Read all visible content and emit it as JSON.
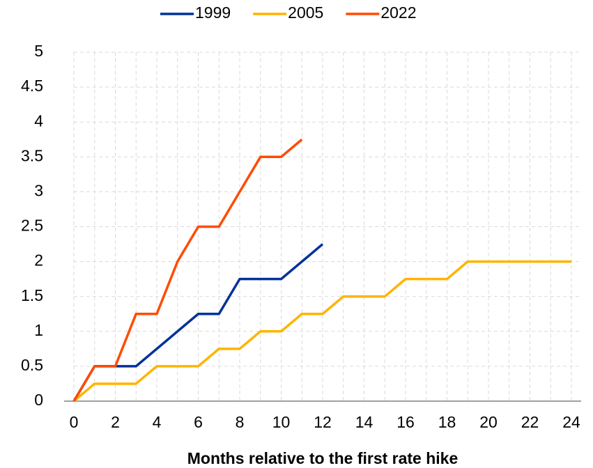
{
  "chart_data": {
    "type": "line",
    "x": [
      0,
      1,
      2,
      3,
      4,
      5,
      6,
      7,
      8,
      9,
      10,
      11,
      12,
      13,
      14,
      15,
      16,
      17,
      18,
      19,
      20,
      21,
      22,
      23,
      24
    ],
    "series": [
      {
        "name": "1999",
        "color": "#003299",
        "values": [
          0,
          0.5,
          0.5,
          0.5,
          0.75,
          1,
          1.25,
          1.25,
          1.75,
          1.75,
          1.75,
          2,
          2.25,
          null,
          null,
          null,
          null,
          null,
          null,
          null,
          null,
          null,
          null,
          null,
          null
        ]
      },
      {
        "name": "2005",
        "color": "#ffb400",
        "values": [
          0,
          0.25,
          0.25,
          0.25,
          0.5,
          0.5,
          0.5,
          0.75,
          0.75,
          1,
          1,
          1.25,
          1.25,
          1.5,
          1.5,
          1.5,
          1.75,
          1.75,
          1.75,
          2,
          2,
          2,
          2,
          2,
          2
        ]
      },
      {
        "name": "2022",
        "color": "#ff4b00",
        "values": [
          0,
          0.5,
          0.5,
          1.25,
          1.25,
          2,
          2.5,
          2.5,
          3,
          3.5,
          3.5,
          3.75,
          null,
          null,
          null,
          null,
          null,
          null,
          null,
          null,
          null,
          null,
          null,
          null,
          null
        ]
      }
    ],
    "xlabel": "Months relative to the first rate hike",
    "xlim": [
      0,
      24
    ],
    "xticks": [
      0,
      2,
      4,
      6,
      8,
      10,
      12,
      14,
      16,
      18,
      20,
      22,
      24
    ],
    "ylim": [
      0,
      5
    ],
    "yticks": [
      0,
      0.5,
      1,
      1.5,
      2,
      2.5,
      3,
      3.5,
      4,
      4.5,
      5
    ],
    "grid": true,
    "legend": "top"
  }
}
